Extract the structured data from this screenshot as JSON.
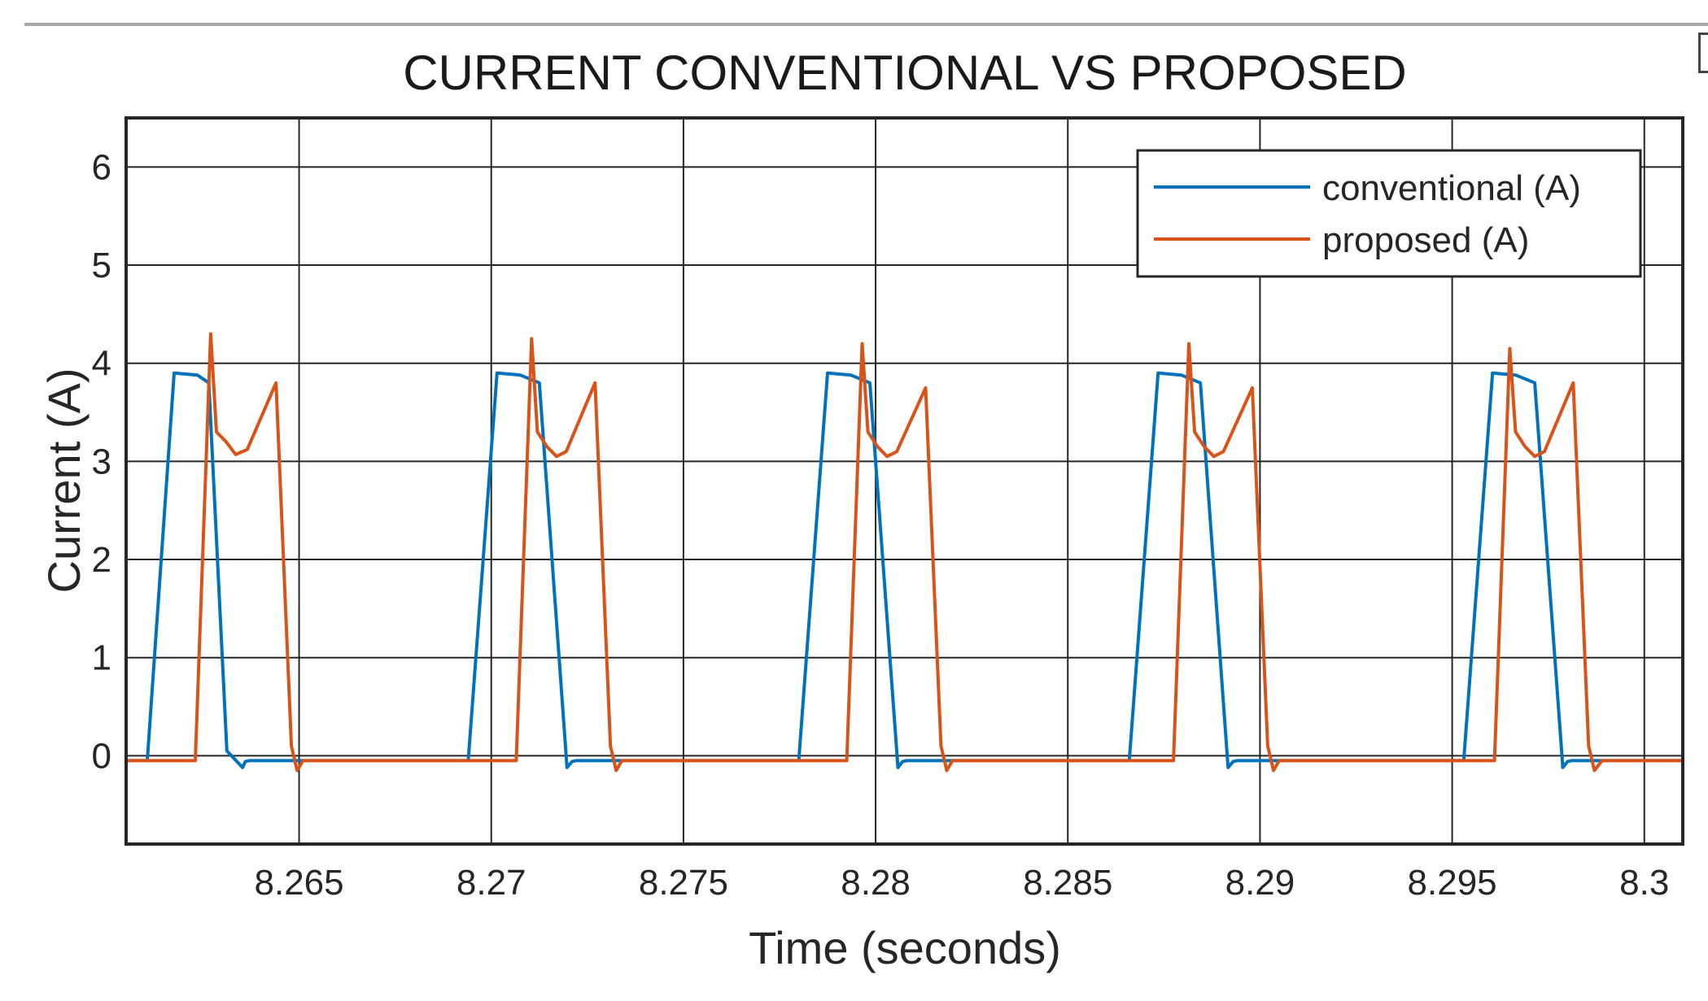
{
  "chart_data": {
    "type": "line",
    "title": "CURRENT CONVENTIONAL VS PROPOSED",
    "xlabel": "Time (seconds)",
    "ylabel": "Current (A)",
    "xlim": [
      8.2605,
      8.301
    ],
    "ylim": [
      -0.9,
      6.5
    ],
    "xticks": [
      8.265,
      8.27,
      8.275,
      8.28,
      8.285,
      8.29,
      8.295,
      8.3
    ],
    "xtick_labels": [
      "8.265",
      "8.27",
      "8.275",
      "8.28",
      "8.285",
      "8.29",
      "8.295",
      "8.3"
    ],
    "yticks": [
      0,
      1,
      2,
      3,
      4,
      5,
      6
    ],
    "ytick_labels": [
      "0",
      "1",
      "2",
      "3",
      "4",
      "5",
      "6"
    ],
    "grid": true,
    "legend_position": "top-right",
    "series": [
      {
        "name": "conventional (A)",
        "color": "#0072BD",
        "x": [
          8.2605,
          8.26105,
          8.26175,
          8.26235,
          8.26265,
          8.26312,
          8.26353,
          8.2636,
          8.2637,
          8.2649,
          8.2694,
          8.27015,
          8.27075,
          8.27125,
          8.27197,
          8.2721,
          8.2722,
          8.2738,
          8.278,
          8.27875,
          8.27935,
          8.27985,
          8.28058,
          8.2807,
          8.2808,
          8.2818,
          8.2866,
          8.28735,
          8.28795,
          8.28845,
          8.28917,
          8.2893,
          8.2894,
          8.2904,
          8.2953,
          8.29605,
          8.29665,
          8.29715,
          8.29788,
          8.298,
          8.2981,
          8.301
        ],
        "y": [
          -0.05,
          -0.05,
          3.9,
          3.88,
          3.8,
          0.05,
          -0.12,
          -0.06,
          -0.05,
          -0.05,
          -0.05,
          3.9,
          3.88,
          3.8,
          -0.12,
          -0.06,
          -0.05,
          -0.05,
          -0.05,
          3.9,
          3.88,
          3.8,
          -0.12,
          -0.06,
          -0.05,
          -0.05,
          -0.05,
          3.9,
          3.88,
          3.8,
          -0.12,
          -0.06,
          -0.05,
          -0.05,
          -0.05,
          3.9,
          3.88,
          3.8,
          -0.12,
          -0.06,
          -0.05,
          -0.05
        ]
      },
      {
        "name": "proposed (A)",
        "color": "#D95319",
        "x": [
          8.2605,
          8.2623,
          8.2627,
          8.26285,
          8.2631,
          8.26335,
          8.26365,
          8.2644,
          8.2648,
          8.26495,
          8.2651,
          8.27065,
          8.27105,
          8.2712,
          8.27145,
          8.2717,
          8.27195,
          8.2727,
          8.2731,
          8.27325,
          8.2734,
          8.27925,
          8.27965,
          8.2798,
          8.28005,
          8.2803,
          8.28055,
          8.2813,
          8.2817,
          8.28185,
          8.282,
          8.28775,
          8.28815,
          8.2883,
          8.28855,
          8.2888,
          8.28905,
          8.2898,
          8.2902,
          8.29035,
          8.2905,
          8.2961,
          8.2965,
          8.29665,
          8.2969,
          8.29715,
          8.2974,
          8.29815,
          8.29855,
          8.2987,
          8.2989,
          8.301
        ],
        "y": [
          -0.05,
          -0.05,
          4.3,
          3.3,
          3.2,
          3.07,
          3.12,
          3.8,
          0.1,
          -0.15,
          -0.05,
          -0.05,
          4.25,
          3.3,
          3.15,
          3.05,
          3.1,
          3.8,
          0.1,
          -0.15,
          -0.05,
          -0.05,
          4.2,
          3.3,
          3.15,
          3.05,
          3.1,
          3.75,
          0.1,
          -0.15,
          -0.05,
          -0.05,
          4.2,
          3.3,
          3.15,
          3.05,
          3.1,
          3.75,
          0.1,
          -0.15,
          -0.05,
          -0.05,
          4.15,
          3.3,
          3.15,
          3.05,
          3.1,
          3.8,
          0.1,
          -0.15,
          -0.05,
          -0.05
        ]
      }
    ]
  }
}
